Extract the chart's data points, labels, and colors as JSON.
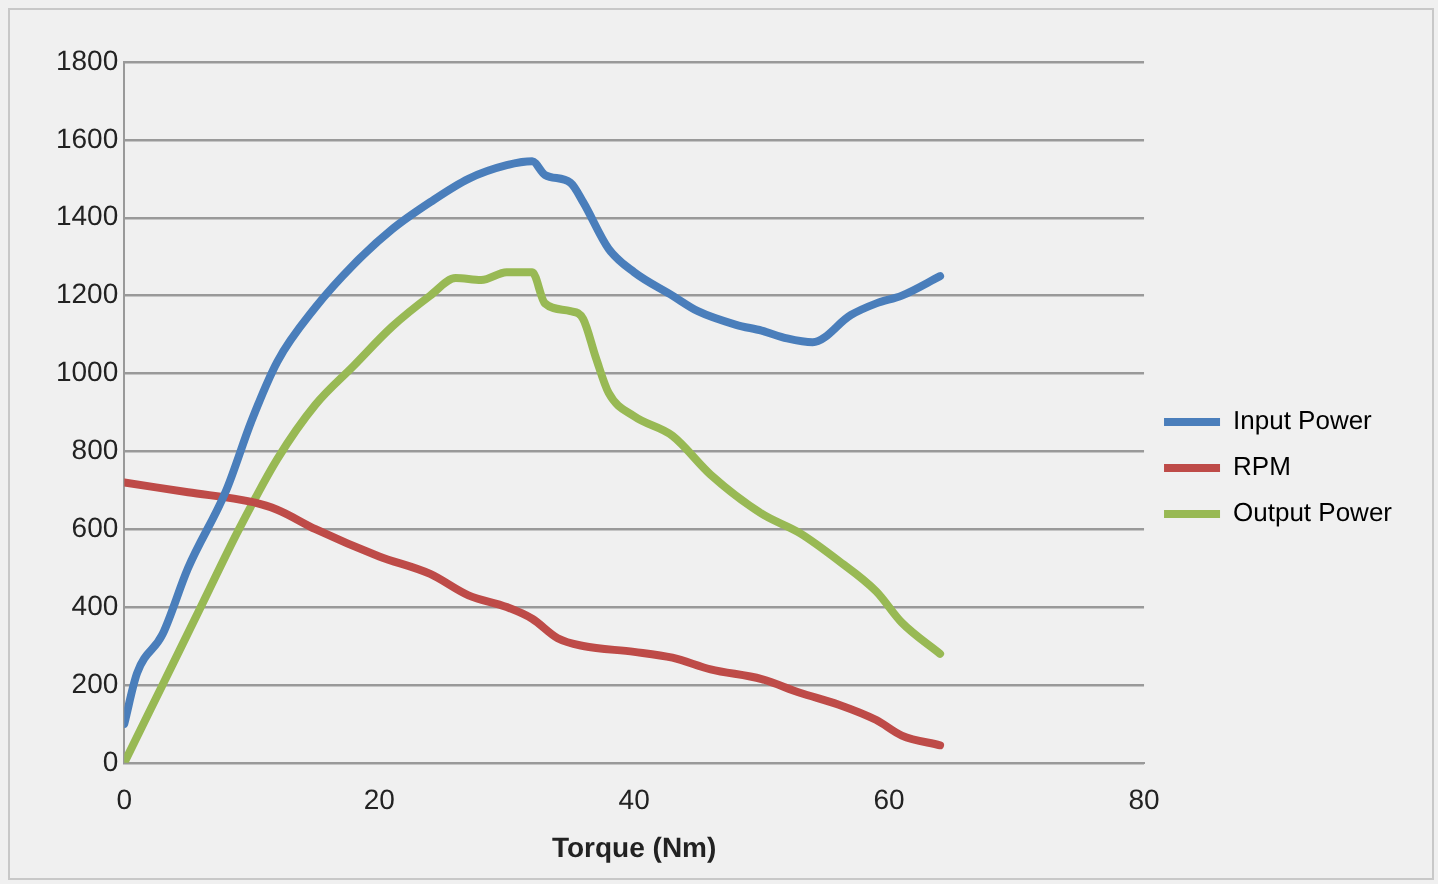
{
  "chart_data": {
    "type": "line",
    "xlabel": "Torque (Nm)",
    "xlim": [
      0,
      80
    ],
    "xticks": [
      0,
      20,
      40,
      60,
      80
    ],
    "ylim": [
      0,
      1800
    ],
    "yticks": [
      0,
      200,
      400,
      600,
      800,
      1000,
      1200,
      1400,
      1600,
      1800
    ],
    "grid": "y",
    "legend": "right",
    "marker": "none",
    "line_style": "solid",
    "series": [
      {
        "name": "Input Power",
        "color": "#4a7ebb",
        "x": [
          0,
          1,
          3,
          5,
          8,
          10,
          12,
          15,
          18,
          21,
          24,
          27,
          30,
          32,
          33,
          35,
          36,
          38,
          40,
          43,
          45,
          48,
          50,
          52,
          54,
          57,
          59,
          61,
          64
        ],
        "values": [
          100,
          230,
          330,
          500,
          700,
          880,
          1030,
          1170,
          1280,
          1370,
          1440,
          1500,
          1535,
          1545,
          1510,
          1490,
          1440,
          1320,
          1260,
          1200,
          1160,
          1125,
          1110,
          1090,
          1080,
          1150,
          1180,
          1200,
          1250
        ]
      },
      {
        "name": "RPM",
        "color": "#be4b48",
        "x": [
          0,
          5,
          10,
          12,
          15,
          20,
          24,
          27,
          30,
          32,
          34,
          36,
          40,
          43,
          46,
          50,
          53,
          56,
          59,
          61,
          64
        ],
        "values": [
          720,
          695,
          670,
          650,
          600,
          530,
          485,
          430,
          400,
          370,
          320,
          300,
          285,
          270,
          240,
          215,
          180,
          150,
          110,
          70,
          45
        ]
      },
      {
        "name": "Output Power",
        "color": "#98b954",
        "x": [
          0,
          3,
          6,
          9,
          12,
          15,
          18,
          21,
          24,
          26,
          28,
          30,
          32,
          33,
          35,
          36,
          37,
          38,
          40,
          43,
          46,
          50,
          53,
          56,
          59,
          61,
          64
        ],
        "values": [
          0,
          200,
          400,
          600,
          780,
          920,
          1020,
          1120,
          1200,
          1245,
          1240,
          1260,
          1260,
          1180,
          1160,
          1140,
          1040,
          950,
          890,
          840,
          740,
          640,
          590,
          520,
          440,
          360,
          280
        ]
      }
    ]
  }
}
